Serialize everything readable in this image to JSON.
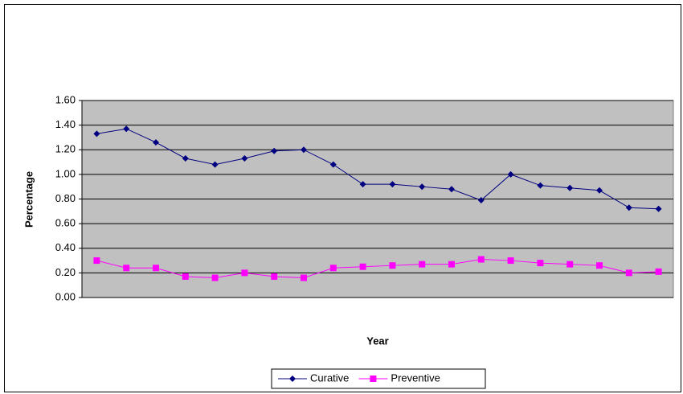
{
  "chart_data": {
    "type": "line",
    "x_label": "Year",
    "y_label": "Percentage",
    "categories": [
      null,
      null,
      null,
      null,
      null,
      null,
      null,
      null,
      null,
      null,
      null,
      null,
      null,
      null,
      null,
      null,
      null,
      null,
      null,
      null
    ],
    "series": [
      {
        "name": "Curative",
        "color": "#000080",
        "marker": "diamond",
        "values": [
          1.33,
          1.37,
          1.26,
          1.13,
          1.08,
          1.13,
          1.19,
          1.2,
          1.08,
          0.92,
          0.92,
          0.9,
          0.88,
          0.79,
          1.0,
          0.91,
          0.89,
          0.87,
          0.73,
          0.72
        ]
      },
      {
        "name": "Preventive",
        "color": "#FF00FF",
        "marker": "square",
        "values": [
          0.3,
          0.24,
          0.24,
          0.17,
          0.16,
          0.2,
          0.17,
          0.16,
          0.24,
          0.25,
          0.26,
          0.27,
          0.27,
          0.31,
          0.3,
          0.28,
          0.27,
          0.26,
          0.2,
          0.21
        ]
      }
    ],
    "ylim": [
      0,
      1.6
    ],
    "yticks": [
      {
        "value": 0,
        "label": "0.00"
      },
      {
        "value": 0.2,
        "label": "0.20"
      },
      {
        "value": 0.4,
        "label": "0.40"
      },
      {
        "value": 0.6,
        "label": "0.60"
      },
      {
        "value": 0.8,
        "label": "0.80"
      },
      {
        "value": 1.0,
        "label": "1.00"
      },
      {
        "value": 1.2,
        "label": "1.20"
      },
      {
        "value": 1.4,
        "label": "1.40"
      },
      {
        "value": 1.6,
        "label": "1.60"
      }
    ],
    "grid": true,
    "legend": "bottom"
  }
}
